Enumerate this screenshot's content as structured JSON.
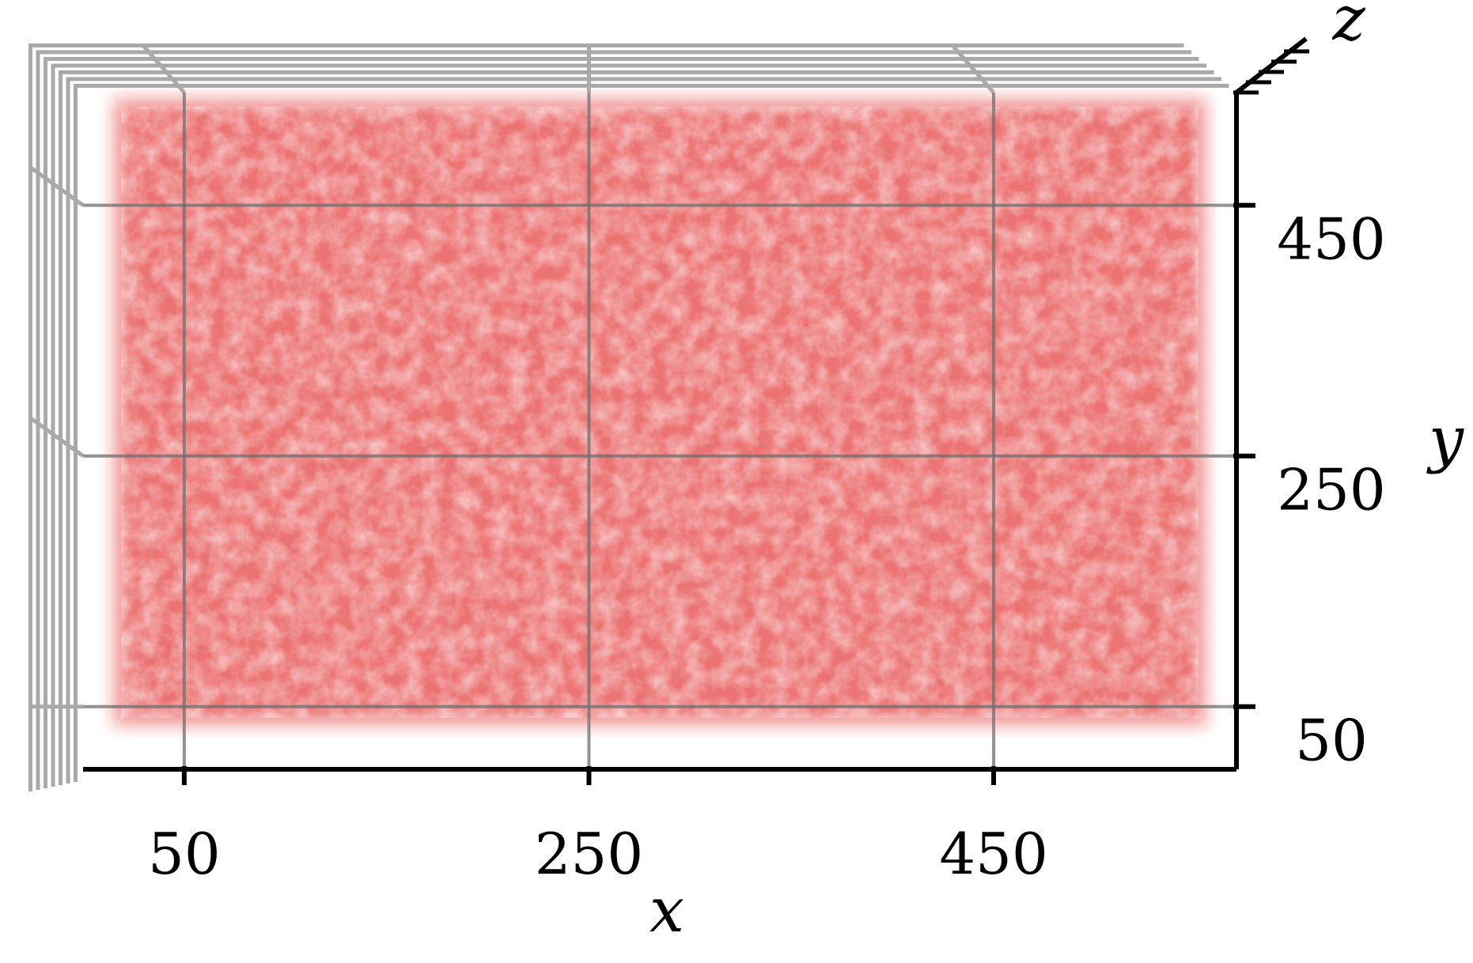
{
  "chart_data": {
    "type": "scatter",
    "projection": "3d",
    "view": "top-down",
    "point_color": "#e02020",
    "point_opacity": "low (dense translucent cloud)",
    "grid_color": "#a9a9a9",
    "axis_color": "#000000",
    "grid": true,
    "xlabel": "x",
    "ylabel": "y",
    "zlabel": "z",
    "xlim": [
      0,
      570
    ],
    "ylim": [
      0,
      540
    ],
    "x_ticks": [
      50,
      250,
      450
    ],
    "y_ticks": [
      50,
      250,
      450
    ],
    "x_tick_labels": [
      "50",
      "250",
      "450"
    ],
    "y_tick_labels": [
      "50",
      "250",
      "450"
    ],
    "cloud_x_range": [
      15,
      555
    ],
    "cloud_y_range": [
      35,
      535
    ]
  }
}
